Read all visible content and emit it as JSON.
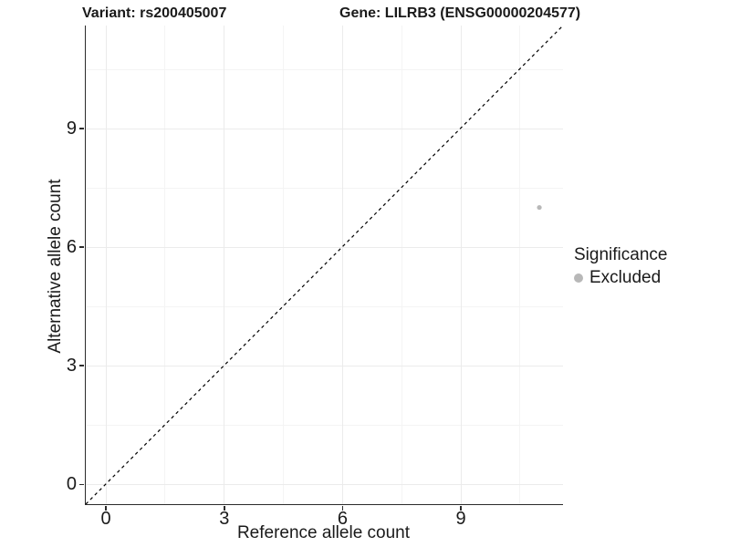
{
  "titles": {
    "variant": "Variant: rs200405007",
    "gene": "Gene: LILRB3 (ENSG00000204577)"
  },
  "chart_data": {
    "type": "scatter",
    "title_left": "Variant: rs200405007",
    "title_right": "Gene: LILRB3 (ENSG00000204577)",
    "xlabel": "Reference allele count",
    "ylabel": "Alternative allele count",
    "xlim": [
      -0.5,
      11.6
    ],
    "ylim": [
      -0.5,
      11.6
    ],
    "x_ticks": [
      0,
      3,
      6,
      9
    ],
    "y_ticks": [
      0,
      3,
      6,
      9
    ],
    "x_minor_ticks": [
      1.5,
      4.5,
      7.5,
      10.5
    ],
    "y_minor_ticks": [
      1.5,
      4.5,
      7.5,
      10.5
    ],
    "grid": true,
    "points": [
      {
        "x": 11,
        "y": 7,
        "series": "Excluded"
      }
    ],
    "point_color": "#b8b8b8",
    "point_radius_px": 2.6,
    "identity_line": {
      "style": "dashed",
      "slope": 1,
      "intercept": 0,
      "color": "#000000"
    },
    "legend": {
      "position": "right",
      "title": "Significance",
      "items": [
        {
          "label": "Excluded",
          "color": "#b8b8b8"
        }
      ]
    },
    "colors": {
      "axis_line": "#2b2b2b",
      "grid_major": "#ebebeb",
      "grid_minor": "#f4f4f4",
      "background": "#ffffff"
    }
  }
}
